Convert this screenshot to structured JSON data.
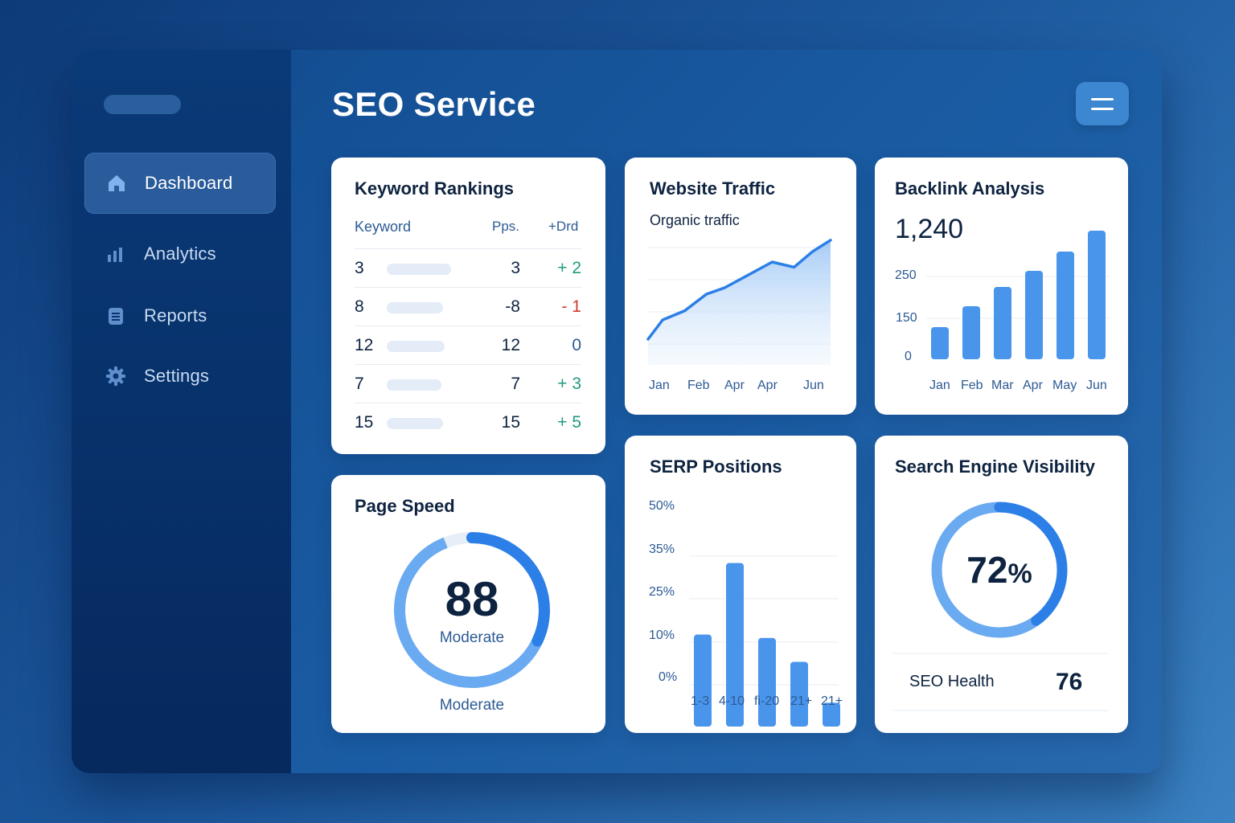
{
  "app": {
    "title": "SEO Service"
  },
  "sidebar": {
    "items": [
      {
        "label": "Dashboard",
        "icon": "home-icon",
        "active": true
      },
      {
        "label": "Analytics",
        "icon": "bar-chart-icon",
        "active": false
      },
      {
        "label": "Reports",
        "icon": "document-icon",
        "active": false
      },
      {
        "label": "Settings",
        "icon": "gear-icon",
        "active": false
      }
    ]
  },
  "header": {
    "menu_icon": "hamburger-icon"
  },
  "colors": {
    "accent": "#3d86d0",
    "positive": "#1f9a7e",
    "negative": "#d33a2f",
    "bar": "#4a95ec"
  },
  "keyword_rankings": {
    "title": "Keyword Rankings",
    "columns": [
      "Keyword",
      "Pps.",
      "+Drd"
    ],
    "rows": [
      {
        "keyword": "3",
        "position": "3",
        "delta": "+ 2",
        "trend": "up"
      },
      {
        "keyword": "8",
        "position": "-8",
        "delta": "- 1",
        "trend": "down"
      },
      {
        "keyword": "12",
        "position": "12",
        "delta": "0",
        "trend": "flat"
      },
      {
        "keyword": "7",
        "position": "7",
        "delta": "+ 3",
        "trend": "up"
      },
      {
        "keyword": "15",
        "position": "15",
        "delta": "+ 5",
        "trend": "up"
      }
    ]
  },
  "page_speed": {
    "title": "Page Speed",
    "score": "88",
    "label": "Moderate",
    "caption": "Moderate",
    "fraction": 0.32
  },
  "search_visibility": {
    "title": "Search Engine Visibility",
    "value": "72",
    "unit": "%",
    "fraction": 0.4,
    "health_label": "SEO Health",
    "health_value": "76"
  },
  "chart_data": [
    {
      "type": "area",
      "title": "Website Traffic",
      "subtitle": "Organic traffic",
      "x": [
        "Jan",
        "Feb",
        "Apr",
        "Apr",
        "Jun"
      ],
      "ylim": [
        0,
        100
      ],
      "points": [
        [
          0,
          20
        ],
        [
          0.08,
          35
        ],
        [
          0.2,
          42
        ],
        [
          0.32,
          55
        ],
        [
          0.42,
          60
        ],
        [
          0.55,
          70
        ],
        [
          0.68,
          80
        ],
        [
          0.8,
          76
        ],
        [
          0.9,
          88
        ],
        [
          1.0,
          97
        ]
      ]
    },
    {
      "type": "bar",
      "title": "Backlink Analysis",
      "headline": "1,240",
      "categories": [
        "Jan",
        "Feb",
        "Mar",
        "Apr",
        "May",
        "Jun"
      ],
      "yticks": [
        "250",
        "150",
        "0"
      ],
      "ylim": [
        0,
        400
      ],
      "values": [
        100,
        165,
        225,
        275,
        335,
        400
      ]
    },
    {
      "type": "bar",
      "title": "SERP Positions",
      "categories": [
        "1-3",
        "4-10",
        "fi-20",
        "21+",
        "21+"
      ],
      "yticks": [
        "50%",
        "35%",
        "25%",
        "10%",
        "0%"
      ],
      "ylim": [
        0,
        50
      ],
      "values": [
        27,
        48,
        26,
        19,
        7
      ]
    }
  ]
}
